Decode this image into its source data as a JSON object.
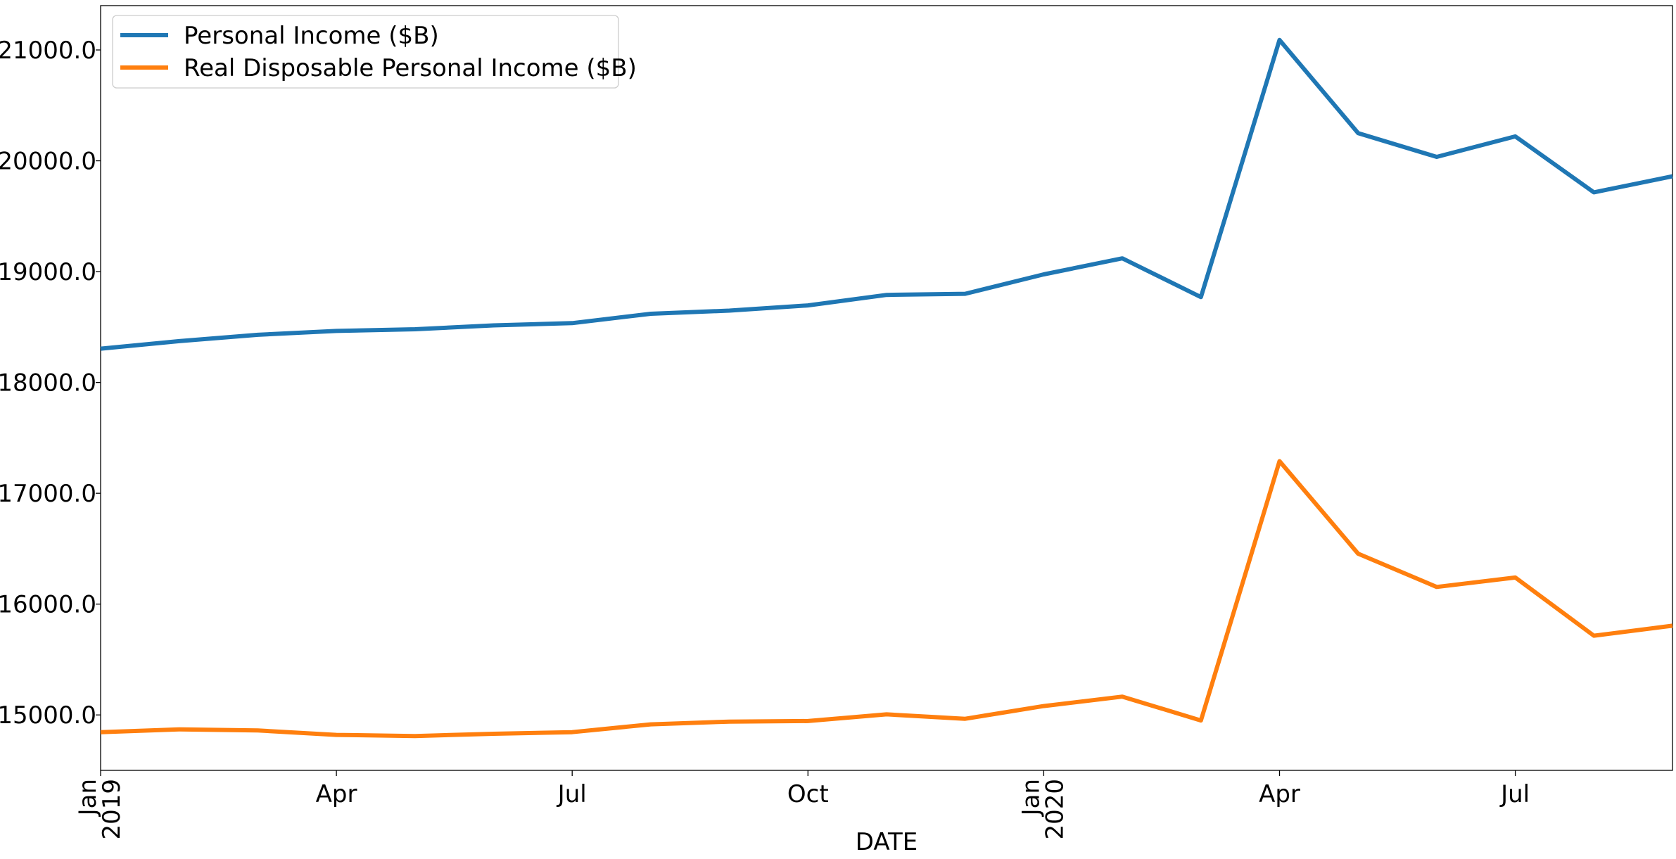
{
  "chart_data": {
    "type": "line",
    "xlabel": "DATE",
    "ylabel": "",
    "ylim": [
      14500,
      21400
    ],
    "x": [
      "2019-01",
      "2019-02",
      "2019-03",
      "2019-04",
      "2019-05",
      "2019-06",
      "2019-07",
      "2019-08",
      "2019-09",
      "2019-10",
      "2019-11",
      "2019-12",
      "2020-01",
      "2020-02",
      "2020-03",
      "2020-04",
      "2020-05",
      "2020-06",
      "2020-07",
      "2020-08",
      "2020-09"
    ],
    "x_ticks": [
      {
        "x": "2019-01",
        "lines": [
          "Jan",
          "2019"
        ],
        "rotated": true
      },
      {
        "x": "2019-04",
        "lines": [
          "Apr"
        ],
        "rotated": false
      },
      {
        "x": "2019-07",
        "lines": [
          "Jul"
        ],
        "rotated": false
      },
      {
        "x": "2019-10",
        "lines": [
          "Oct"
        ],
        "rotated": false
      },
      {
        "x": "2020-01",
        "lines": [
          "Jan",
          "2020"
        ],
        "rotated": true
      },
      {
        "x": "2020-04",
        "lines": [
          "Apr"
        ],
        "rotated": false
      },
      {
        "x": "2020-07",
        "lines": [
          "Jul"
        ],
        "rotated": false
      }
    ],
    "y_ticks": [
      15000,
      16000,
      17000,
      18000,
      19000,
      20000,
      21000
    ],
    "y_tick_labels": [
      "15000.0",
      "16000.0",
      "17000.0",
      "18000.0",
      "19000.0",
      "20000.0",
      "21000.0"
    ],
    "grid": false,
    "legend_position": "top-left",
    "series": [
      {
        "name": "Personal Income ($B)",
        "color": "#1f77b4",
        "values": [
          18305,
          18373,
          18430,
          18465,
          18480,
          18515,
          18535,
          18620,
          18648,
          18695,
          18790,
          18800,
          18975,
          19120,
          18770,
          21090,
          20250,
          20035,
          20220,
          19715,
          19860
        ]
      },
      {
        "name": "Real Disposable Personal Income ($B)",
        "color": "#ff7f0e",
        "values": [
          14845,
          14870,
          14860,
          14820,
          14810,
          14830,
          14845,
          14915,
          14940,
          14945,
          15005,
          14965,
          15080,
          15165,
          14950,
          17290,
          16455,
          16155,
          16240,
          15715,
          15805
        ]
      }
    ]
  }
}
